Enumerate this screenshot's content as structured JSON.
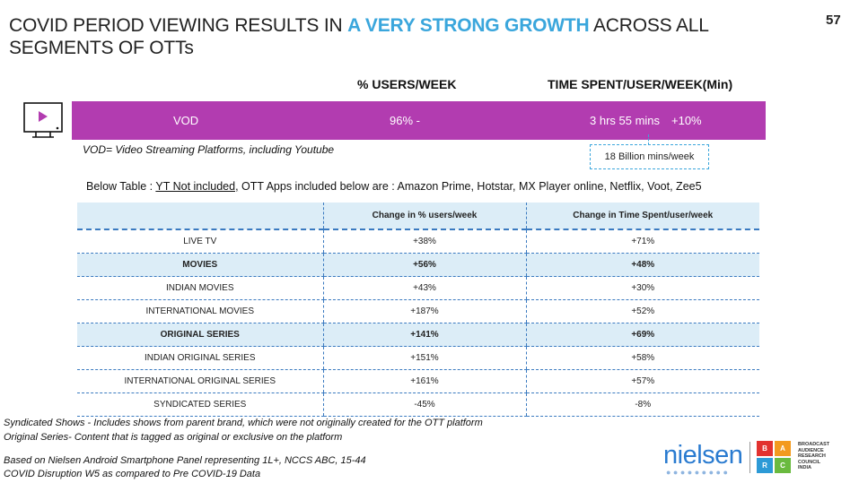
{
  "header": {
    "title_pre": "COVID PERIOD VIEWING RESULTS IN ",
    "title_highlight": "A VERY STRONG GROWTH",
    "title_post": " ACROSS ALL SEGMENTS OF OTTs",
    "page_number": "57"
  },
  "summary": {
    "col_users": "% USERS/WEEK",
    "col_time": "TIME SPENT/USER/WEEK(Min)",
    "row_label": "VOD",
    "users_value": "96%  -",
    "time_value": "3 hrs 55 mins",
    "time_change": "+10%",
    "callout": "18 Billion mins/week",
    "definition": "VOD= Video Streaming Platforms, including Youtube"
  },
  "below_note": {
    "prefix": "Below Table : ",
    "underlined": "YT Not included,",
    "suffix": "  OTT Apps included below are : Amazon Prime, Hotstar, MX Player online, Netflix, Voot, Zee5"
  },
  "table": {
    "headers": [
      "",
      "Change in % users/week",
      "Change in Time Spent/user/week"
    ],
    "rows": [
      {
        "label": "LIVE TV",
        "users": "+38%",
        "time": "+71%"
      },
      {
        "label": "MOVIES",
        "users": "+56%",
        "time": "+48%"
      },
      {
        "label": "INDIAN MOVIES",
        "users": "+43%",
        "time": "+30%"
      },
      {
        "label": "INTERNATIONAL MOVIES",
        "users": "+187%",
        "time": "+52%"
      },
      {
        "label": "ORIGINAL SERIES",
        "users": "+141%",
        "time": "+69%"
      },
      {
        "label": "INDIAN ORIGINAL SERIES",
        "users": "+151%",
        "time": "+58%"
      },
      {
        "label": "INTERNATIONAL ORIGINAL SERIES",
        "users": "+161%",
        "time": "+57%"
      },
      {
        "label": "SYNDICATED  SERIES",
        "users": "-45%",
        "time": "-8%"
      }
    ]
  },
  "footnotes": {
    "syndicated": "Syndicated Shows - Includes shows from parent brand, which were not originally created for the OTT platform",
    "original": "Original Series- Content that is tagged as original or exclusive on the platform",
    "source": "Based on Nielsen Android Smartphone Panel representing 1L+, NCCS ABC, 15-44",
    "comparison": "COVID Disruption W5  as compared to Pre COVID-19 Data"
  },
  "logos": {
    "nielsen": "nielsen",
    "barc_letters": [
      "B",
      "A",
      "R",
      "C"
    ],
    "barc_colors": [
      "#e2322f",
      "#f39a1e",
      "#2d9ad6",
      "#6aba3f"
    ],
    "barc_line1": "BROADCAST",
    "barc_line2": "AUDIENCE",
    "barc_line3": "RESEARCH",
    "barc_line4": "COUNCIL",
    "barc_line5": "INDIA"
  },
  "colors": {
    "accent": "#3aa6dc",
    "vod_bar": "#b23cb0",
    "table_highlight": "#dcedf7"
  }
}
